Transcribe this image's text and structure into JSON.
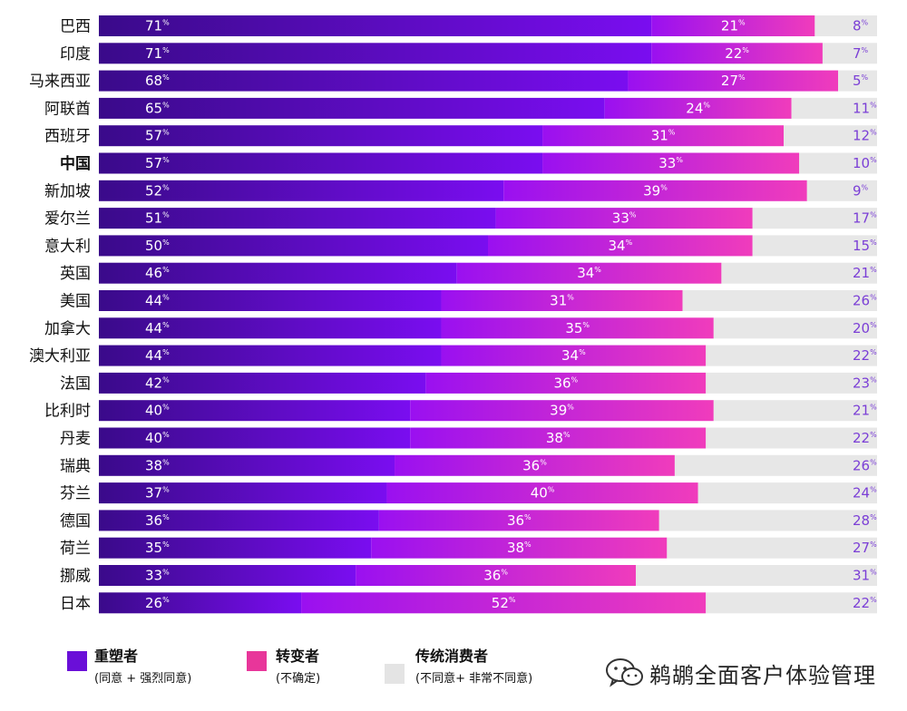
{
  "chart_data": {
    "type": "bar",
    "orientation": "horizontal",
    "stacked": true,
    "normalized": true,
    "categories": [
      "巴西",
      "印度",
      "马来西亚",
      "阿联酋",
      "西班牙",
      "中国",
      "新加坡",
      "爱尔兰",
      "意大利",
      "英国",
      "美国",
      "加拿大",
      "澳大利亚",
      "法国",
      "比利时",
      "丹麦",
      "瑞典",
      "芬兰",
      "德国",
      "荷兰",
      "挪威",
      "日本"
    ],
    "highlight_category": "中国",
    "unit": "%",
    "series": [
      {
        "name": "重塑者",
        "values": [
          71,
          71,
          68,
          65,
          57,
          57,
          52,
          51,
          50,
          46,
          44,
          44,
          44,
          42,
          40,
          40,
          38,
          37,
          36,
          35,
          33,
          26
        ]
      },
      {
        "name": "转变者",
        "values": [
          21,
          22,
          27,
          24,
          31,
          33,
          39,
          33,
          34,
          34,
          31,
          35,
          34,
          36,
          39,
          38,
          36,
          40,
          36,
          38,
          36,
          52
        ]
      },
      {
        "name": "传统消费者",
        "values": [
          8,
          7,
          5,
          11,
          12,
          10,
          9,
          17,
          15,
          21,
          26,
          20,
          22,
          23,
          21,
          22,
          26,
          24,
          28,
          27,
          31,
          22
        ]
      }
    ],
    "legend_position": "bottom",
    "legend": [
      {
        "name": "重塑者",
        "note": "(同意 + 强烈同意)"
      },
      {
        "name": "转变者",
        "note": "(不确定)"
      },
      {
        "name": "传统消费者",
        "note": "(不同意+ 非常不同意)"
      }
    ],
    "colors": {
      "reshaper_dark": "#3a0a8a",
      "reshaper_light": "#7a0df0",
      "shifter_dark": "#9a10f0",
      "shifter_light": "#f03cbc",
      "legacy": "#e7e7e7",
      "legacy_text": "#7b3fd6",
      "legend_reshaper": "#6a0fd8",
      "legend_shifter": "#e8369a",
      "legend_legacy": "#e4e4e4"
    }
  },
  "watermark": {
    "text": "鹈鹕全面客户体验管理",
    "icon": "wechat-logo-icon"
  }
}
